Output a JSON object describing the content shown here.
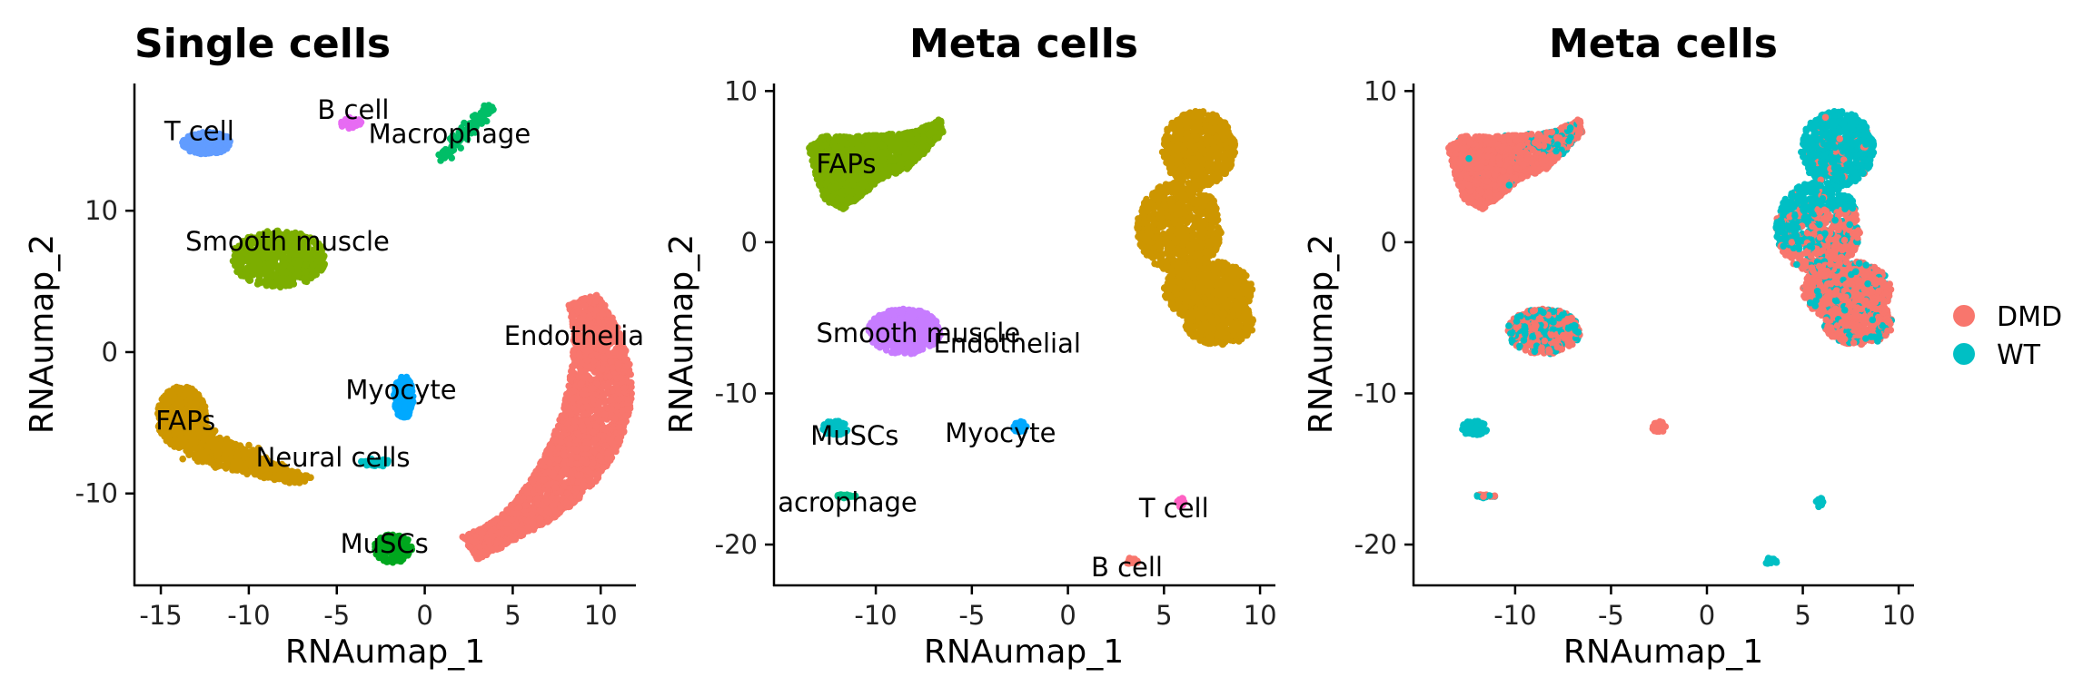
{
  "chart_data": [
    {
      "type": "scatter",
      "title": "Single cells",
      "xlabel": "RNAumap_1",
      "ylabel": "RNAumap_2",
      "xlim": [
        -16.5,
        12
      ],
      "ylim": [
        -16.5,
        19
      ],
      "xticks": [
        -15,
        -10,
        -5,
        0,
        5,
        10
      ],
      "xtick_labels": [
        "-15",
        "-10",
        "-5",
        "0",
        "5",
        "10"
      ],
      "yticks": [
        -10,
        0,
        10
      ],
      "ytick_labels": [
        "-10",
        "0",
        "10"
      ],
      "grid": false,
      "clusters": [
        {
          "name": "Endothelial",
          "label": "Endothelia",
          "color": "#F8766D",
          "shape": "arc",
          "label_x": 4.5,
          "label_y": 0.5
        },
        {
          "name": "FAPs",
          "label": "FAPs",
          "color": "#CD9600",
          "shape": "tail",
          "label_x": -15.3,
          "label_y": -5.5
        },
        {
          "name": "Smooth muscle",
          "label": "Smooth muscle",
          "color": "#7CAE00",
          "cx": -8.3,
          "cy": 6.6,
          "rx": 2.7,
          "ry": 2.0,
          "n": 650,
          "label_x": -13.6,
          "label_y": 7.2
        },
        {
          "name": "T cell",
          "label": "T cell",
          "color": "#619CFF",
          "cx": -12.4,
          "cy": 14.8,
          "rx": 1.4,
          "ry": 0.8,
          "n": 180,
          "label_x": -14.8,
          "label_y": 15.0
        },
        {
          "name": "B cell",
          "label": "B cell",
          "color": "#E76BF3",
          "cx": -4.2,
          "cy": 16.2,
          "rx": 0.6,
          "ry": 0.4,
          "n": 40,
          "label_x": -6.1,
          "label_y": 16.5
        },
        {
          "name": "Macrophage",
          "label": "Macrophage",
          "color": "#00BE67",
          "shape": "segment",
          "x0": 1.0,
          "y0": 13.8,
          "x1": 3.7,
          "y1": 17.3,
          "n": 120,
          "label_x": -3.2,
          "label_y": 14.8
        },
        {
          "name": "Myocyte",
          "label": "Myocyte",
          "color": "#00A9FF",
          "cx": -1.2,
          "cy": -3.2,
          "rx": 0.55,
          "ry": 1.5,
          "n": 160,
          "label_x": -4.5,
          "label_y": -3.3
        },
        {
          "name": "Neural cells",
          "label": "Neural cells",
          "color": "#00BFC4",
          "cx": -2.8,
          "cy": -7.8,
          "rx": 0.9,
          "ry": 0.3,
          "n": 30,
          "label_x": -9.6,
          "label_y": -8.1
        },
        {
          "name": "MuSCs",
          "label": "MuSCs",
          "color": "#00A71E",
          "cx": -1.8,
          "cy": -13.9,
          "rx": 1.1,
          "ry": 1.0,
          "n": 200,
          "label_x": -4.8,
          "label_y": -14.2
        }
      ]
    },
    {
      "type": "scatter",
      "title": "Meta cells",
      "xlabel": "RNAumap_1",
      "ylabel": "RNAumap_2",
      "xlim": [
        -15.3,
        10.8
      ],
      "ylim": [
        -22.7,
        10.5
      ],
      "xticks": [
        -10,
        -5,
        0,
        5,
        10
      ],
      "xtick_labels": [
        "-10",
        "-5",
        "0",
        "5",
        "10"
      ],
      "yticks": [
        -20,
        -10,
        0,
        10
      ],
      "ytick_labels": [
        "-20",
        "-10",
        "0",
        "10"
      ],
      "grid": false,
      "clusters": [
        {
          "name": "FAPs",
          "label": "FAPs",
          "color": "#7CAE00",
          "shape": "fan",
          "label_x": -13.1,
          "label_y": 4.6
        },
        {
          "name": "Endothelial",
          "label": "Endothelial",
          "color": "#CD9600",
          "shape": "snake",
          "label_x": -7,
          "label_y": -7.3
        },
        {
          "name": "Smooth muscle",
          "label": "Smooth muscle",
          "color": "#C77CFF",
          "cx": -8.5,
          "cy": -5.9,
          "rx": 1.9,
          "ry": 1.5,
          "n": 520,
          "label_x": -13.1,
          "label_y": -6.6
        },
        {
          "name": "MuSCs",
          "label": "MuSCs",
          "color": "#00BFC4",
          "cx": -12.1,
          "cy": -12.3,
          "rx": 0.7,
          "ry": 0.5,
          "n": 70,
          "label_x": -13.4,
          "label_y": -13.4
        },
        {
          "name": "Myocyte",
          "label": "Myocyte",
          "color": "#00A9FF",
          "cx": -2.5,
          "cy": -12.2,
          "rx": 0.35,
          "ry": 0.4,
          "n": 25,
          "label_x": -6.4,
          "label_y": -13.2
        },
        {
          "name": "Macrophage",
          "label": "acrophage",
          "color": "#00C08B",
          "cx": -11.6,
          "cy": -16.8,
          "rx": 0.6,
          "ry": 0.12,
          "n": 25,
          "label_x": -15.1,
          "label_y": -17.8
        },
        {
          "name": "T cell",
          "label": "T cell",
          "color": "#FF61C3",
          "cx": 5.8,
          "cy": -17.2,
          "rx": 0.3,
          "ry": 0.3,
          "n": 15,
          "label_x": 3.7,
          "label_y": -18.2
        },
        {
          "name": "B cell",
          "label": "B cell",
          "color": "#F8766D",
          "cx": 3.3,
          "cy": -21.1,
          "rx": 0.35,
          "ry": 0.25,
          "n": 15,
          "label_x": 1.2,
          "label_y": -22.1
        }
      ]
    },
    {
      "type": "scatter",
      "title": "Meta cells",
      "xlabel": "RNAumap_1",
      "ylabel": "RNAumap_2",
      "xlim": [
        -15.3,
        10.8
      ],
      "ylim": [
        -22.7,
        10.5
      ],
      "xticks": [
        -10,
        -5,
        0,
        5,
        10
      ],
      "xtick_labels": [
        "-10",
        "-5",
        "0",
        "5",
        "10"
      ],
      "yticks": [
        -20,
        -10,
        0,
        10
      ],
      "ytick_labels": [
        "-20",
        "-10",
        "0",
        "10"
      ],
      "grid": false,
      "legend": {
        "placement": "right",
        "entries": [
          {
            "name": "DMD",
            "color": "#F8766D"
          },
          {
            "name": "WT",
            "color": "#00BFC4"
          }
        ]
      }
    }
  ]
}
